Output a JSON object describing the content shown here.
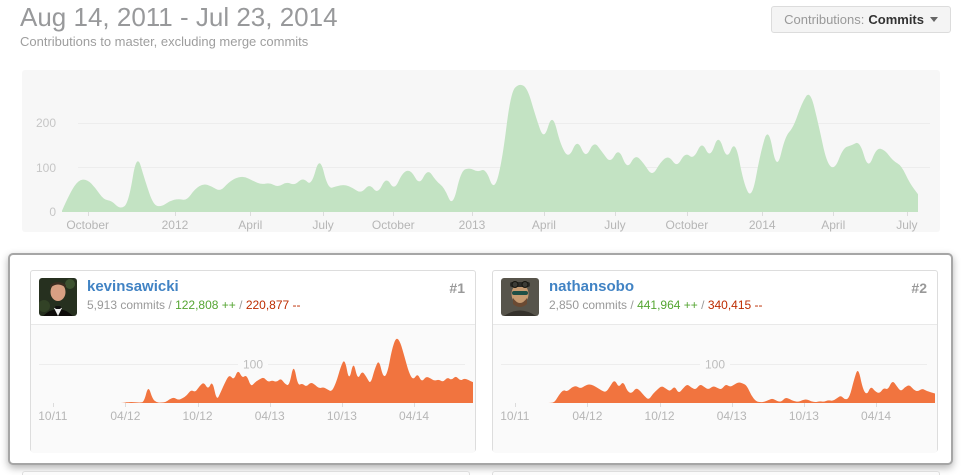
{
  "header": {
    "title": "Aug 14, 2011 - Jul 23, 2014",
    "subtitle": "Contributions to master, excluding merge commits",
    "dropdown_label": "Contributions:",
    "dropdown_value": "Commits"
  },
  "colors": {
    "overview_area": "#c3e3c3",
    "contributor_area": "#f1743f",
    "additions_green": "#55a532",
    "deletions_red": "#bd2c00",
    "link_blue": "#4183c4"
  },
  "separator": "/",
  "contributors": [
    {
      "rank": "#1",
      "username": "kevinsawicki",
      "commits": "5,913 commits",
      "additions": "122,808 ++",
      "deletions": "220,877 --"
    },
    {
      "rank": "#2",
      "username": "nathansobo",
      "commits": "2,850 commits",
      "additions": "441,964 ++",
      "deletions": "340,415 --"
    }
  ],
  "chart_data": [
    {
      "type": "area",
      "name": "all-contributors-commits-per-week",
      "color": "#c3e3c3",
      "ylim": [
        0,
        320
      ],
      "grid": "on",
      "y_axis_labels": [
        {
          "value": 0,
          "label": "0"
        },
        {
          "value": 100,
          "label": "100"
        },
        {
          "value": 200,
          "label": "200"
        }
      ],
      "gridline_values": [
        100,
        200
      ],
      "x_ticks": [
        {
          "label": "October",
          "pos": 0.03
        },
        {
          "label": "2012",
          "pos": 0.132
        },
        {
          "label": "April",
          "pos": 0.22
        },
        {
          "label": "July",
          "pos": 0.305
        },
        {
          "label": "October",
          "pos": 0.387
        },
        {
          "label": "2013",
          "pos": 0.479
        },
        {
          "label": "April",
          "pos": 0.563
        },
        {
          "label": "July",
          "pos": 0.646
        },
        {
          "label": "October",
          "pos": 0.73
        },
        {
          "label": "2014",
          "pos": 0.818
        },
        {
          "label": "April",
          "pos": 0.901
        },
        {
          "label": "July",
          "pos": 0.987
        }
      ],
      "values": [
        3,
        45,
        72,
        74,
        55,
        28,
        25,
        6,
        20,
        135,
        70,
        15,
        12,
        25,
        30,
        26,
        52,
        64,
        58,
        46,
        66,
        78,
        80,
        70,
        62,
        66,
        56,
        68,
        60,
        78,
        58,
        128,
        52,
        58,
        62,
        54,
        42,
        64,
        40,
        80,
        48,
        90,
        95,
        60,
        98,
        70,
        55,
        10,
        92,
        100,
        90,
        98,
        45,
        120,
        270,
        290,
        280,
        215,
        160,
        225,
        150,
        120,
        165,
        120,
        160,
        135,
        110,
        145,
        95,
        130,
        110,
        80,
        112,
        128,
        100,
        135,
        118,
        160,
        120,
        178,
        115,
        165,
        65,
        28,
        130,
        195,
        90,
        170,
        190,
        245,
        275,
        200,
        110,
        95,
        145,
        150,
        160,
        95,
        145,
        140,
        115,
        105,
        65,
        40
      ]
    },
    {
      "type": "area",
      "name": "kevinsawicki-commits-per-week",
      "color": "#f1743f",
      "ylim": [
        0,
        205
      ],
      "grid": "on",
      "inline_y_label": {
        "value": 100,
        "label": "100"
      },
      "gridline_values": [
        100
      ],
      "x_ticks": [
        {
          "label": "10/11",
          "pos": 0.045
        },
        {
          "label": "04/12",
          "pos": 0.21
        },
        {
          "label": "10/12",
          "pos": 0.374
        },
        {
          "label": "04/13",
          "pos": 0.538
        },
        {
          "label": "10/13",
          "pos": 0.702
        },
        {
          "label": "04/14",
          "pos": 0.866
        }
      ],
      "values": [
        0,
        0,
        0,
        0,
        0,
        0,
        0,
        0,
        0,
        0,
        0,
        0,
        0,
        0,
        0,
        0,
        0,
        0,
        0,
        0,
        0,
        0,
        2,
        3,
        2,
        1,
        3,
        47,
        10,
        1,
        1,
        2,
        10,
        15,
        8,
        12,
        20,
        35,
        28,
        45,
        55,
        35,
        60,
        5,
        30,
        55,
        75,
        60,
        88,
        65,
        75,
        42,
        55,
        62,
        68,
        55,
        60,
        55,
        65,
        50,
        45,
        105,
        45,
        52,
        42,
        55,
        48,
        38,
        42,
        35,
        30,
        55,
        95,
        118,
        55,
        112,
        60,
        85,
        70,
        48,
        90,
        115,
        65,
        80,
        140,
        174,
        160,
        120,
        80,
        60,
        78,
        55,
        70,
        65,
        58,
        62,
        55,
        68,
        60,
        72,
        58,
        65,
        60,
        55
      ]
    },
    {
      "type": "area",
      "name": "nathansobo-commits-per-week",
      "color": "#f1743f",
      "ylim": [
        0,
        205
      ],
      "grid": "on",
      "inline_y_label": {
        "value": 100,
        "label": "100"
      },
      "gridline_values": [
        100
      ],
      "x_ticks": [
        {
          "label": "10/11",
          "pos": 0.045
        },
        {
          "label": "04/12",
          "pos": 0.21
        },
        {
          "label": "10/12",
          "pos": 0.374
        },
        {
          "label": "04/13",
          "pos": 0.538
        },
        {
          "label": "10/13",
          "pos": 0.702
        },
        {
          "label": "04/14",
          "pos": 0.866
        }
      ],
      "values": [
        0,
        0,
        0,
        0,
        0,
        0,
        0,
        0,
        0,
        0,
        0,
        0,
        0,
        0,
        2,
        22,
        35,
        30,
        42,
        45,
        38,
        45,
        50,
        46,
        40,
        32,
        28,
        45,
        62,
        40,
        58,
        30,
        25,
        40,
        32,
        18,
        8,
        25,
        35,
        45,
        38,
        30,
        45,
        25,
        38,
        50,
        40,
        35,
        50,
        42,
        35,
        45,
        40,
        35,
        50,
        42,
        48,
        55,
        52,
        45,
        20,
        5,
        2,
        3,
        8,
        12,
        5,
        3,
        15,
        10,
        5,
        3,
        8,
        10,
        4,
        2,
        5,
        3,
        8,
        5,
        12,
        20,
        8,
        15,
        60,
        95,
        40,
        20,
        45,
        30,
        25,
        40,
        35,
        60,
        45,
        30,
        42,
        48,
        35,
        30,
        38,
        32,
        28,
        25
      ]
    }
  ]
}
